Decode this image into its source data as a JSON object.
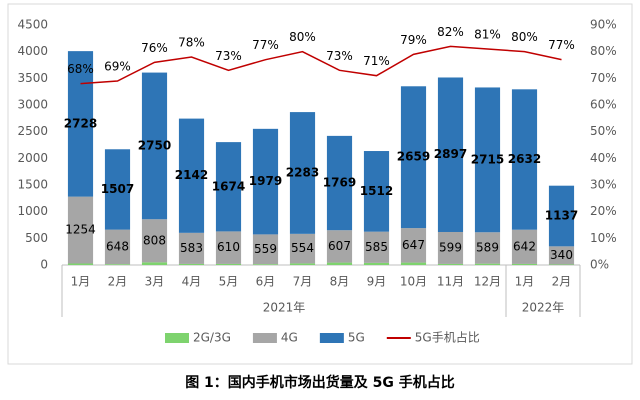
{
  "chart_data": {
    "type": "bar",
    "stacked": true,
    "caption": "图 1：国内手机市场出货量及 5G 手机占比",
    "categories": [
      "1月",
      "2月",
      "3月",
      "4月",
      "5月",
      "6月",
      "7月",
      "8月",
      "9月",
      "10月",
      "11月",
      "12月",
      "1月",
      "2月"
    ],
    "x_groups": [
      {
        "label": "2021年",
        "count": 12
      },
      {
        "label": "2022年",
        "count": 2
      }
    ],
    "ylim": [
      0,
      4500
    ],
    "yticks": [
      0,
      500,
      1000,
      1500,
      2000,
      2500,
      3000,
      3500,
      4000,
      4500
    ],
    "y2lim": [
      0,
      0.9
    ],
    "y2ticks": [
      {
        "value": 0,
        "label": "0%"
      },
      {
        "value": 0.1,
        "label": "10%"
      },
      {
        "value": 0.2,
        "label": "20%"
      },
      {
        "value": 0.3,
        "label": "30%"
      },
      {
        "value": 0.4,
        "label": "40%"
      },
      {
        "value": 0.5,
        "label": "50%"
      },
      {
        "value": 0.6,
        "label": "60%"
      },
      {
        "value": 0.7,
        "label": "70%"
      },
      {
        "value": 0.8,
        "label": "80%"
      },
      {
        "value": 0.9,
        "label": "90%"
      }
    ],
    "series": [
      {
        "name": "2G/3G",
        "color": "#7ed36e",
        "show_labels": false,
        "values": [
          28,
          15,
          50,
          20,
          20,
          15,
          30,
          45,
          40,
          45,
          20,
          25,
          20,
          10
        ]
      },
      {
        "name": "4G",
        "color": "#a6a6a6",
        "show_labels": true,
        "values": [
          1254,
          648,
          808,
          583,
          610,
          559,
          554,
          607,
          585,
          647,
          599,
          589,
          642,
          340
        ]
      },
      {
        "name": "5G",
        "color": "#2e75b6",
        "show_labels": true,
        "bold_labels": true,
        "values": [
          2728,
          1507,
          2750,
          2142,
          1674,
          1979,
          2283,
          1769,
          1512,
          2659,
          2897,
          2715,
          2632,
          1137
        ]
      },
      {
        "name": "5G手机占比",
        "color": "#c00000",
        "type": "line",
        "axis": "y2",
        "show_labels": true,
        "values": [
          0.68,
          0.69,
          0.76,
          0.78,
          0.73,
          0.77,
          0.8,
          0.73,
          0.71,
          0.79,
          0.82,
          0.81,
          0.8,
          0.77
        ],
        "value_labels": [
          "68%",
          "69%",
          "76%",
          "78%",
          "73%",
          "77%",
          "80%",
          "73%",
          "71%",
          "79%",
          "82%",
          "81%",
          "80%",
          "77%"
        ]
      }
    ]
  }
}
